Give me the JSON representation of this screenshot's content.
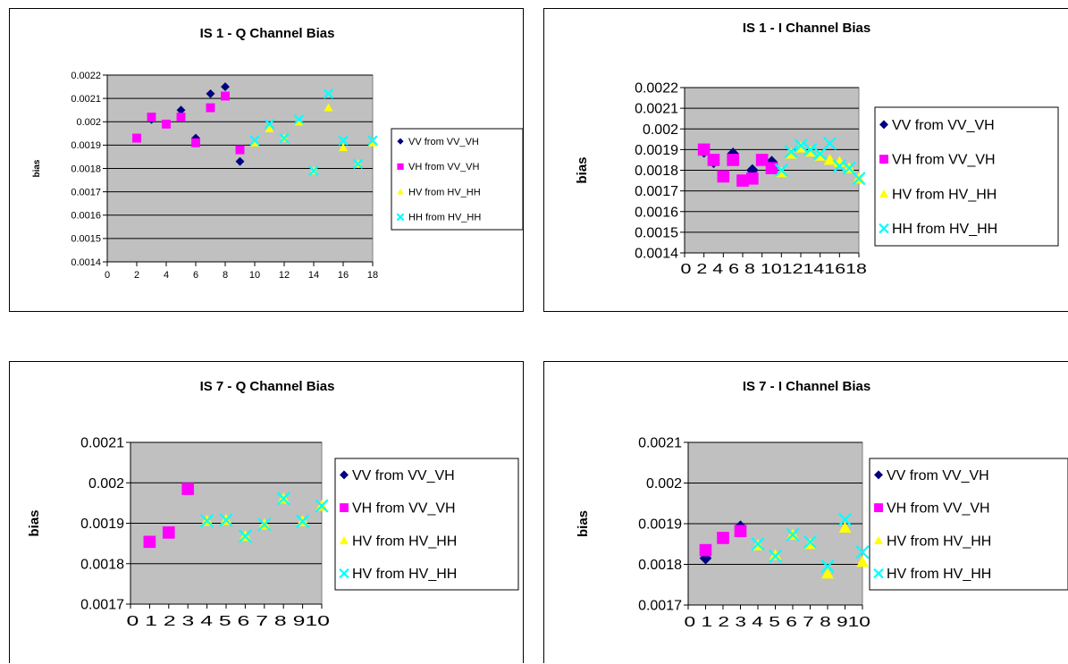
{
  "chart_data": [
    {
      "type": "scatter",
      "title": "IS 1 - Q Channel Bias",
      "ylabel": "bias",
      "xlabel": "",
      "xlim": [
        0,
        18
      ],
      "ylim": [
        0.0014,
        0.0022
      ],
      "xticks": [
        0,
        2,
        4,
        6,
        8,
        10,
        12,
        14,
        16,
        18
      ],
      "yticks": [
        "0.0014",
        "0.0015",
        "0.0016",
        "0.0017",
        "0.0018",
        "0.0019",
        "0.002",
        "0.0021",
        "0.0022"
      ],
      "grid": true,
      "legend_position": "right",
      "series": [
        {
          "name": "VV from VV_VH",
          "marker": "diamond",
          "color": "#000080",
          "x": [
            2,
            3,
            4,
            5,
            6,
            7,
            8,
            9
          ],
          "y": [
            0.00193,
            0.00201,
            0.00199,
            0.00205,
            0.00193,
            0.00212,
            0.00215,
            0.00183
          ]
        },
        {
          "name": "VH from VV_VH",
          "marker": "square",
          "color": "#ff00ff",
          "x": [
            2,
            3,
            4,
            5,
            6,
            7,
            8,
            9
          ],
          "y": [
            0.00193,
            0.00202,
            0.00199,
            0.00202,
            0.00191,
            0.00206,
            0.00211,
            0.00188
          ]
        },
        {
          "name": "HV from HV_HH",
          "marker": "triangle",
          "color": "#ffff00",
          "x": [
            10,
            11,
            12,
            13,
            14,
            15,
            16,
            17,
            18
          ],
          "y": [
            0.00191,
            0.00197,
            0.00193,
            0.002,
            0.00179,
            0.00206,
            0.00189,
            0.00182,
            0.00191
          ]
        },
        {
          "name": "HH from HV_HH",
          "marker": "x",
          "color": "#00ffff",
          "x": [
            10,
            11,
            12,
            13,
            14,
            15,
            16,
            17,
            18
          ],
          "y": [
            0.00192,
            0.00199,
            0.00193,
            0.00201,
            0.00179,
            0.00212,
            0.00192,
            0.00182,
            0.00192
          ]
        }
      ]
    },
    {
      "type": "scatter",
      "title": "IS 1 - I Channel Bias",
      "ylabel": "bias",
      "xlabel": "",
      "xlim": [
        0,
        18
      ],
      "ylim": [
        0.0014,
        0.0022
      ],
      "xticks": [
        0,
        2,
        4,
        6,
        8,
        10,
        12,
        14,
        16,
        18
      ],
      "xtick_text": "0 2 4 6 8 1012141618",
      "yticks": [
        "0.0014",
        "0.0015",
        "0.0016",
        "0.0017",
        "0.0018",
        "0.0019",
        "0.002",
        "0.0021",
        "0.0022"
      ],
      "grid": true,
      "legend_position": "right",
      "series": [
        {
          "name": "VV from VV_VH",
          "marker": "diamond",
          "color": "#000080",
          "x": [
            2,
            3,
            4,
            5,
            6,
            7,
            8,
            9
          ],
          "y": [
            0.00189,
            0.00184,
            0.00177,
            0.00188,
            0.00175,
            0.0018,
            0.00185,
            0.00184
          ]
        },
        {
          "name": "VH from VV_VH",
          "marker": "square",
          "color": "#ff00ff",
          "x": [
            2,
            3,
            4,
            5,
            6,
            7,
            8,
            9
          ],
          "y": [
            0.0019,
            0.00185,
            0.00177,
            0.00185,
            0.00175,
            0.00176,
            0.00185,
            0.00181
          ]
        },
        {
          "name": "HV from HV_HH",
          "marker": "triangle",
          "color": "#ffff00",
          "x": [
            10,
            11,
            12,
            13,
            14,
            15,
            16,
            17,
            18
          ],
          "y": [
            0.00179,
            0.00188,
            0.00191,
            0.00189,
            0.00187,
            0.00185,
            0.00184,
            0.00181,
            0.00176
          ]
        },
        {
          "name": "HH from HV_HH",
          "marker": "x",
          "color": "#00ffff",
          "x": [
            10,
            11,
            12,
            13,
            14,
            15,
            16,
            17,
            18
          ],
          "y": [
            0.0018,
            0.00189,
            0.00192,
            0.0019,
            0.00188,
            0.00193,
            0.00182,
            0.00181,
            0.00176
          ]
        }
      ]
    },
    {
      "type": "scatter",
      "title": "IS 7 - Q Channel Bias",
      "ylabel": "bias",
      "xlabel": "",
      "xlim": [
        0,
        10
      ],
      "ylim": [
        0.0017,
        0.0021
      ],
      "xticks": [
        0,
        1,
        2,
        3,
        4,
        5,
        6,
        7,
        8,
        9,
        10
      ],
      "xtick_text": "0 1 2 3 4 5 6 7 8 910",
      "yticks": [
        "0.0017",
        "0.0018",
        "0.0019",
        "0.002",
        "0.0021"
      ],
      "grid": true,
      "legend_position": "right",
      "series": [
        {
          "name": "VV from VV_VH",
          "marker": "diamond",
          "color": "#000080",
          "x": [
            1,
            2,
            3
          ],
          "y": [
            0.001854,
            0.001877,
            0.001985
          ]
        },
        {
          "name": "VH from VV_VH",
          "marker": "square",
          "color": "#ff00ff",
          "x": [
            1,
            2,
            3
          ],
          "y": [
            0.001854,
            0.001877,
            0.001985
          ]
        },
        {
          "name": "HV from HV_HH",
          "marker": "triangle",
          "color": "#ffff00",
          "x": [
            4,
            5,
            6,
            7,
            8,
            9,
            10
          ],
          "y": [
            0.001906,
            0.001908,
            0.001868,
            0.001897,
            0.001961,
            0.001905,
            0.001943
          ]
        },
        {
          "name": "HV from HV_HH",
          "marker": "x",
          "color": "#00ffff",
          "x": [
            4,
            5,
            6,
            7,
            8,
            9,
            10
          ],
          "y": [
            0.001906,
            0.001908,
            0.001868,
            0.001897,
            0.001961,
            0.001905,
            0.001943
          ]
        }
      ]
    },
    {
      "type": "scatter",
      "title": "IS 7 - I Channel Bias",
      "ylabel": "bias",
      "xlabel": "",
      "xlim": [
        0,
        10
      ],
      "ylim": [
        0.0017,
        0.0021
      ],
      "xticks": [
        0,
        1,
        2,
        3,
        4,
        5,
        6,
        7,
        8,
        9,
        10
      ],
      "xtick_text": "0 1 2 3 4 5 6 7 8 910",
      "yticks": [
        "0.0017",
        "0.0018",
        "0.0019",
        "0.002",
        "0.0021"
      ],
      "grid": true,
      "legend_position": "right",
      "series": [
        {
          "name": "VV from VV_VH",
          "marker": "diamond",
          "color": "#000080",
          "x": [
            1,
            2,
            3
          ],
          "y": [
            0.001815,
            0.001865,
            0.001893
          ]
        },
        {
          "name": "VH from VV_VH",
          "marker": "square",
          "color": "#ff00ff",
          "x": [
            1,
            2,
            3
          ],
          "y": [
            0.001835,
            0.001865,
            0.001882
          ]
        },
        {
          "name": "HV from HV_HH",
          "marker": "triangle",
          "color": "#ffff00",
          "x": [
            4,
            5,
            6,
            7,
            8,
            9,
            10
          ],
          "y": [
            0.001847,
            0.001823,
            0.001873,
            0.00185,
            0.001777,
            0.00189,
            0.001806
          ]
        },
        {
          "name": "HV from HV_HH",
          "marker": "x",
          "color": "#00ffff",
          "x": [
            4,
            5,
            6,
            7,
            8,
            9,
            10
          ],
          "y": [
            0.00185,
            0.00182,
            0.001873,
            0.001855,
            0.001795,
            0.00191,
            0.00183
          ]
        }
      ]
    }
  ]
}
